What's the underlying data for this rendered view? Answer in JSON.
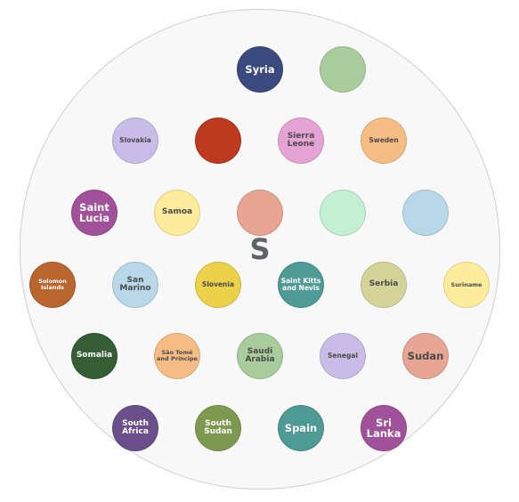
{
  "center": {
    "letter": "S",
    "color": "#5f6368"
  },
  "board": {
    "fill": "#f8f8f8",
    "border": "#cfcfcf"
  },
  "bubbles": [
    {
      "label": "Syria",
      "color": "#3b4a7e"
    },
    {
      "label": "",
      "color": "#a8cc9c"
    },
    {
      "label": "Slovakia",
      "color": "#c9bce8"
    },
    {
      "label": "",
      "color": "#bd3a1e"
    },
    {
      "label": "Sierra Leone",
      "color": "#e5a3d3"
    },
    {
      "label": "Sweden",
      "color": "#f5bd84"
    },
    {
      "label": "Saint Lucia",
      "color": "#a1509a"
    },
    {
      "label": "Samoa",
      "color": "#fdec9b"
    },
    {
      "label": "",
      "color": "#e8a593"
    },
    {
      "label": "",
      "color": "#c3efd3"
    },
    {
      "label": "",
      "color": "#b8d8ea"
    },
    {
      "label": "Solomon Islands",
      "color": "#b9652e"
    },
    {
      "label": "San Marino",
      "color": "#b8d8ea"
    },
    {
      "label": "Slovenia",
      "color": "#ecd14a"
    },
    {
      "label": "Saint Kitts and Nevis",
      "color": "#4e9a95"
    },
    {
      "label": "Serbia",
      "color": "#d4d498"
    },
    {
      "label": "Suriname",
      "color": "#fdec9b"
    },
    {
      "label": "Somalia",
      "color": "#355e35"
    },
    {
      "label": "São Tomé and Príncipe",
      "color": "#f5bd84"
    },
    {
      "label": "Saudi Arabia",
      "color": "#a8cc9c"
    },
    {
      "label": "Senegal",
      "color": "#c9bce8"
    },
    {
      "label": "Sudan",
      "color": "#e8a593"
    },
    {
      "label": "South Africa",
      "color": "#6a4f8a"
    },
    {
      "label": "South Sudan",
      "color": "#7d9950"
    },
    {
      "label": "Spain",
      "color": "#4e9a95"
    },
    {
      "label": "Sri Lanka",
      "color": "#a1509a"
    }
  ]
}
